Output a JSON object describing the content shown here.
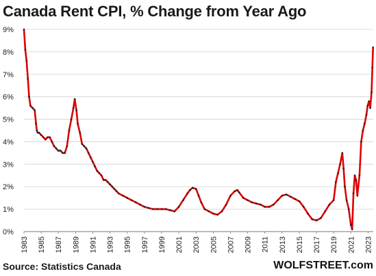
{
  "chart_data": {
    "type": "line",
    "title": "Canada  Rent CPI, % Change from Year Ago",
    "source": "Source: Statistics Canada",
    "brand": "WOLFSTREET.com",
    "xlabel": "",
    "ylabel": "",
    "grid": true,
    "ylim": [
      0,
      9
    ],
    "xlim": [
      1983.0,
      2023.6
    ],
    "y_ticks": [
      "0%",
      "1%",
      "2%",
      "3%",
      "4%",
      "5%",
      "6%",
      "7%",
      "8%",
      "9%"
    ],
    "x_ticks": [
      "1983",
      "1985",
      "1987",
      "1989",
      "1991",
      "1993",
      "1995",
      "1997",
      "1999",
      "2001",
      "2003",
      "2005",
      "2007",
      "2009",
      "2011",
      "2013",
      "2015",
      "2017",
      "2019",
      "2021",
      "2023"
    ],
    "line_color": "#e00000",
    "marker_color": "#222222",
    "series": [
      {
        "x": [
          1983.0,
          1983.15,
          1983.3,
          1983.45,
          1983.6,
          1983.75,
          1984.0,
          1984.25,
          1984.4,
          1984.5,
          1984.6,
          1984.75,
          1985.0,
          1985.25,
          1985.5,
          1985.75,
          1986.0,
          1986.25,
          1986.5,
          1986.75,
          1987.0,
          1987.25,
          1987.5,
          1987.75,
          1988.0,
          1988.25,
          1988.5,
          1988.75,
          1988.9,
          1989.1,
          1989.25,
          1989.5,
          1989.75,
          1990.0,
          1990.25,
          1990.5,
          1990.75,
          1991.0,
          1991.25,
          1991.5,
          1991.75,
          1992.0,
          1992.25,
          1992.5,
          1992.75,
          1993.0,
          1993.25,
          1993.5,
          1993.75,
          1994.0,
          1994.5,
          1995.0,
          1995.5,
          1996.0,
          1996.5,
          1997.0,
          1997.5,
          1998.0,
          1998.5,
          1999.0,
          1999.5,
          2000.0,
          2000.5,
          2001.0,
          2001.5,
          2002.0,
          2002.3,
          2002.6,
          2003.0,
          2003.3,
          2003.6,
          2004.0,
          2004.5,
          2005.0,
          2005.5,
          2006.0,
          2006.5,
          2007.0,
          2007.5,
          2007.8,
          2008.0,
          2008.5,
          2009.0,
          2009.5,
          2010.0,
          2010.5,
          2011.0,
          2011.5,
          2012.0,
          2012.5,
          2013.0,
          2013.5,
          2014.0,
          2014.5,
          2015.0,
          2015.5,
          2016.0,
          2016.5,
          2017.0,
          2017.5,
          2018.0,
          2018.5,
          2019.0,
          2019.25,
          2019.5,
          2019.75,
          2020.0,
          2020.15,
          2020.3,
          2020.5,
          2020.75,
          2021.0,
          2021.15,
          2021.3,
          2021.45,
          2021.6,
          2021.75,
          2022.0,
          2022.2,
          2022.4,
          2022.6,
          2022.8,
          2022.95,
          2023.1,
          2023.25,
          2023.4,
          2023.5,
          2023.58
        ],
        "values": [
          9.0,
          8.1,
          7.6,
          6.8,
          6.0,
          5.6,
          5.5,
          5.4,
          4.8,
          4.5,
          4.4,
          4.4,
          4.3,
          4.2,
          4.1,
          4.2,
          4.2,
          4.0,
          3.8,
          3.7,
          3.6,
          3.6,
          3.5,
          3.5,
          3.8,
          4.5,
          5.0,
          5.5,
          5.9,
          5.4,
          4.8,
          4.4,
          3.9,
          3.8,
          3.7,
          3.5,
          3.3,
          3.1,
          2.9,
          2.7,
          2.6,
          2.5,
          2.3,
          2.3,
          2.2,
          2.1,
          2.0,
          1.9,
          1.8,
          1.7,
          1.6,
          1.5,
          1.4,
          1.3,
          1.2,
          1.1,
          1.05,
          1.0,
          1.0,
          1.0,
          1.0,
          0.95,
          0.9,
          1.1,
          1.4,
          1.7,
          1.85,
          1.95,
          1.9,
          1.6,
          1.3,
          1.0,
          0.9,
          0.8,
          0.75,
          0.9,
          1.2,
          1.6,
          1.8,
          1.85,
          1.75,
          1.5,
          1.4,
          1.3,
          1.25,
          1.2,
          1.1,
          1.1,
          1.2,
          1.4,
          1.6,
          1.65,
          1.55,
          1.45,
          1.35,
          1.1,
          0.8,
          0.55,
          0.5,
          0.6,
          0.9,
          1.2,
          1.4,
          2.2,
          2.6,
          3.0,
          3.5,
          2.8,
          2.0,
          1.4,
          1.0,
          0.3,
          0.1,
          1.7,
          2.5,
          2.3,
          1.6,
          2.5,
          4.0,
          4.5,
          4.8,
          5.2,
          5.6,
          5.8,
          5.5,
          6.2,
          7.3,
          8.2
        ]
      }
    ]
  }
}
